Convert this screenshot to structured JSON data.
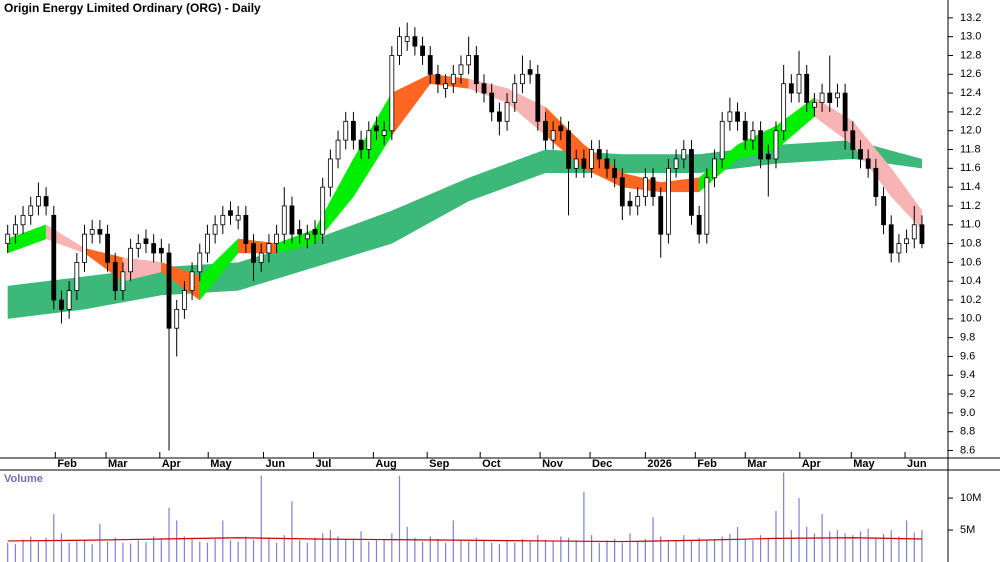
{
  "chart_data": [
    {
      "type": "candlestick",
      "title": "Origin Energy Limited Ordinary (ORG) - Daily",
      "xlim": [
        -1,
        122
      ],
      "xticks": [
        {
          "value": 6.2,
          "label": "Feb"
        },
        {
          "value": 12.8,
          "label": "Mar"
        },
        {
          "value": 19.8,
          "label": "Apr"
        },
        {
          "value": 26.1,
          "label": "May"
        },
        {
          "value": 33.3,
          "label": "Jun"
        },
        {
          "value": 39.8,
          "label": "Jul"
        },
        {
          "value": 47.6,
          "label": "Aug"
        },
        {
          "value": 54.6,
          "label": "Sep"
        },
        {
          "value": 61.5,
          "label": "Oct"
        },
        {
          "value": 69.3,
          "label": "Nov"
        },
        {
          "value": 75.8,
          "label": "Dec"
        },
        {
          "value": 83.0,
          "label": "2026"
        },
        {
          "value": 89.5,
          "label": "Feb"
        },
        {
          "value": 96.0,
          "label": "Mar"
        },
        {
          "value": 103.1,
          "label": "Apr"
        },
        {
          "value": 109.8,
          "label": "May"
        },
        {
          "value": 116.8,
          "label": "Jun"
        }
      ],
      "ylim": [
        8.52,
        13.39
      ],
      "yticks": [
        8.6,
        8.8,
        {
          "value": 9.0,
          "label": "9.0"
        },
        9.2,
        9.4,
        9.6,
        9.8,
        {
          "value": 10.0,
          "label": "10.0"
        },
        10.2,
        10.4,
        10.6,
        10.8,
        {
          "value": 11.0,
          "label": "11.0"
        },
        11.2,
        11.4,
        11.6,
        11.8,
        {
          "value": 12.0,
          "label": "12.0"
        },
        12.2,
        12.4,
        12.6,
        12.8,
        {
          "value": 13.0,
          "label": "13.0"
        },
        13.2
      ],
      "up_color": "#ffffff",
      "down_color": "#000000",
      "open": [
        10.8,
        10.9,
        11.0,
        11.1,
        11.2,
        11.3,
        11.1,
        10.2,
        10.1,
        10.3,
        10.6,
        10.9,
        10.95,
        10.9,
        10.6,
        10.3,
        10.5,
        10.75,
        10.85,
        10.8,
        10.75,
        10.7,
        9.9,
        10.1,
        10.3,
        10.5,
        10.7,
        10.9,
        11.0,
        11.15,
        11.05,
        11.1,
        10.8,
        10.6,
        10.7,
        10.8,
        10.9,
        11.2,
        10.95,
        10.85,
        10.95,
        10.9,
        11.4,
        11.7,
        11.9,
        12.1,
        11.9,
        11.8,
        12.05,
        11.95,
        12.0,
        12.8,
        12.95,
        13.0,
        12.9,
        12.8,
        12.6,
        12.45,
        12.5,
        12.6,
        12.7,
        12.8,
        12.5,
        12.4,
        12.2,
        12.1,
        12.3,
        12.5,
        12.65,
        12.6,
        12.1,
        11.9,
        12.05,
        12.0,
        11.6,
        11.7,
        11.6,
        11.8,
        11.7,
        11.6,
        11.5,
        11.25,
        11.2,
        11.3,
        11.5,
        11.3,
        10.9,
        11.6,
        11.7,
        11.8,
        11.1,
        10.9,
        11.5,
        11.7,
        12.1,
        12.2,
        12.1,
        11.9,
        12.0,
        11.75,
        11.7,
        12.0,
        12.5,
        12.4,
        12.6,
        12.25,
        12.3,
        12.4,
        12.35,
        12.4,
        12.0,
        11.8,
        11.7,
        11.6,
        11.3,
        11.0,
        10.7,
        10.8,
        10.85,
        11.0
      ],
      "high": [
        11.0,
        11.1,
        11.2,
        11.3,
        11.45,
        11.4,
        11.2,
        10.3,
        10.4,
        10.7,
        11.0,
        11.05,
        11.05,
        11.0,
        10.7,
        10.6,
        10.85,
        10.9,
        10.95,
        10.9,
        10.85,
        10.8,
        10.2,
        10.4,
        10.6,
        10.8,
        11.0,
        11.1,
        11.2,
        11.25,
        11.2,
        11.2,
        10.9,
        10.8,
        10.9,
        11.0,
        11.4,
        11.3,
        11.05,
        11.0,
        11.05,
        11.5,
        11.8,
        12.0,
        12.2,
        12.2,
        12.0,
        12.1,
        12.15,
        12.1,
        12.9,
        13.1,
        13.15,
        13.1,
        13.0,
        12.9,
        12.7,
        12.6,
        12.7,
        12.8,
        13.0,
        12.9,
        12.6,
        12.5,
        12.3,
        12.4,
        12.6,
        12.8,
        12.75,
        12.7,
        12.2,
        12.1,
        12.15,
        12.1,
        11.8,
        11.8,
        11.9,
        11.9,
        11.8,
        11.7,
        11.6,
        11.35,
        11.4,
        11.6,
        11.6,
        11.4,
        11.7,
        11.8,
        11.9,
        11.9,
        11.2,
        11.6,
        11.8,
        12.2,
        12.35,
        12.3,
        12.2,
        12.1,
        12.1,
        11.85,
        12.1,
        12.7,
        12.6,
        12.85,
        12.7,
        12.4,
        12.5,
        12.8,
        12.5,
        12.5,
        12.1,
        11.9,
        11.8,
        11.7,
        11.4,
        11.1,
        10.9,
        10.95,
        11.2,
        11.1
      ],
      "low": [
        10.7,
        10.8,
        10.9,
        11.0,
        11.1,
        11.1,
        10.1,
        9.95,
        10.0,
        10.2,
        10.5,
        10.8,
        10.8,
        10.5,
        10.2,
        10.2,
        10.4,
        10.65,
        10.7,
        10.6,
        10.6,
        8.6,
        9.6,
        10.0,
        10.2,
        10.4,
        10.6,
        10.8,
        10.9,
        11.0,
        10.95,
        10.7,
        10.4,
        10.5,
        10.6,
        10.7,
        10.8,
        10.8,
        10.8,
        10.75,
        10.8,
        10.8,
        11.3,
        11.6,
        11.8,
        11.8,
        11.7,
        11.7,
        11.9,
        11.85,
        11.9,
        12.7,
        12.85,
        12.8,
        12.7,
        12.5,
        12.4,
        12.35,
        12.4,
        12.5,
        12.6,
        12.4,
        12.3,
        12.1,
        11.95,
        12.0,
        12.2,
        12.4,
        12.5,
        12.0,
        11.8,
        11.8,
        11.9,
        11.1,
        11.5,
        11.5,
        11.5,
        11.6,
        11.5,
        11.4,
        11.05,
        11.1,
        11.1,
        11.2,
        11.2,
        10.65,
        10.8,
        11.5,
        11.6,
        11.0,
        10.8,
        10.8,
        11.4,
        11.6,
        12.0,
        12.0,
        11.8,
        11.8,
        11.6,
        11.3,
        11.6,
        11.9,
        12.3,
        12.3,
        12.2,
        12.15,
        12.2,
        12.2,
        12.25,
        11.8,
        11.7,
        11.6,
        11.5,
        11.2,
        10.9,
        10.6,
        10.6,
        10.7,
        10.75,
        10.75
      ],
      "close": [
        10.9,
        11.0,
        11.1,
        11.2,
        11.3,
        11.2,
        10.2,
        10.1,
        10.3,
        10.6,
        10.9,
        10.95,
        10.9,
        10.6,
        10.3,
        10.5,
        10.75,
        10.8,
        10.8,
        10.7,
        10.7,
        9.9,
        10.1,
        10.3,
        10.5,
        10.7,
        10.9,
        11.0,
        11.1,
        11.1,
        11.1,
        10.8,
        10.6,
        10.7,
        10.8,
        10.9,
        11.2,
        10.9,
        10.9,
        10.9,
        10.9,
        11.4,
        11.7,
        11.9,
        12.1,
        11.9,
        11.8,
        12.0,
        12.0,
        12.0,
        12.8,
        13.0,
        13.0,
        12.9,
        12.8,
        12.6,
        12.5,
        12.5,
        12.6,
        12.7,
        12.8,
        12.5,
        12.4,
        12.2,
        12.1,
        12.3,
        12.5,
        12.6,
        12.6,
        12.1,
        11.9,
        12.0,
        12.0,
        11.6,
        11.7,
        11.6,
        11.8,
        11.7,
        11.6,
        11.5,
        11.2,
        11.2,
        11.3,
        11.5,
        11.3,
        10.9,
        11.6,
        11.7,
        11.8,
        11.1,
        10.9,
        11.5,
        11.7,
        12.1,
        12.2,
        12.1,
        11.9,
        12.0,
        11.7,
        11.7,
        12.0,
        12.5,
        12.4,
        12.6,
        12.3,
        12.3,
        12.4,
        12.3,
        12.4,
        12.0,
        11.8,
        11.7,
        11.6,
        11.3,
        11.0,
        10.7,
        10.8,
        10.85,
        11.0,
        10.8
      ],
      "long_band": {
        "color": "#3cb878",
        "x": [
          0,
          10,
          20,
          30,
          40,
          50,
          60,
          70,
          80,
          90,
          100,
          110,
          119
        ],
        "upper": [
          10.35,
          10.45,
          10.55,
          10.6,
          10.85,
          11.15,
          11.5,
          11.8,
          11.75,
          11.75,
          11.85,
          11.9,
          11.7
        ],
        "lower": [
          10.0,
          10.1,
          10.25,
          10.3,
          10.55,
          10.8,
          11.25,
          11.55,
          11.55,
          11.55,
          11.65,
          11.7,
          11.6
        ]
      },
      "short_band": {
        "x": [
          0,
          5,
          10,
          15,
          20,
          25,
          30,
          35,
          40,
          45,
          50,
          55,
          60,
          65,
          70,
          75,
          80,
          85,
          90,
          95,
          100,
          105,
          110,
          115,
          119
        ],
        "upper": [
          10.85,
          11.0,
          10.75,
          10.65,
          10.6,
          10.45,
          10.85,
          10.8,
          10.95,
          11.7,
          12.4,
          12.6,
          12.55,
          12.45,
          12.25,
          11.85,
          11.55,
          11.45,
          11.5,
          11.85,
          12.05,
          12.35,
          12.1,
          11.6,
          11.15
        ],
        "lower": [
          10.7,
          10.85,
          10.7,
          10.4,
          10.5,
          10.2,
          10.7,
          10.7,
          10.8,
          11.3,
          11.95,
          12.5,
          12.45,
          12.3,
          11.95,
          11.6,
          11.4,
          11.35,
          11.35,
          11.7,
          11.8,
          12.15,
          11.85,
          11.3,
          10.95
        ],
        "colors": [
          "#00ee00",
          "#f8b4b4",
          "#ff6622",
          "#f8b4b4",
          "#ff6622",
          "#00ee00",
          "#ff6622",
          "#00ee00",
          "#00ee00",
          "#00ee00",
          "#ff6622",
          "#ff6622",
          "#f8b4b4",
          "#f8b4b4",
          "#ff6622",
          "#ff6622",
          "#ff6622",
          "#ff6622",
          "#00ee00",
          "#00ee00",
          "#00ee00",
          "#f8b4b4",
          "#f8b4b4",
          "#f8b4b4"
        ]
      }
    },
    {
      "type": "bar",
      "title": "Volume",
      "xlim": [
        -1,
        122
      ],
      "ylim": [
        0,
        14.4
      ],
      "yticks": [
        {
          "value": 5,
          "label": "5M"
        },
        {
          "value": 10,
          "label": "10M"
        }
      ],
      "color": "#7f7fd6",
      "values": [
        3.0,
        2.8,
        3.5,
        4.0,
        3.2,
        3.8,
        7.5,
        4.5,
        3.0,
        3.2,
        3.5,
        2.8,
        6.0,
        3.2,
        3.8,
        3.0,
        2.9,
        3.4,
        3.1,
        4.0,
        3.5,
        8.5,
        6.5,
        4.0,
        3.8,
        3.2,
        3.0,
        3.6,
        6.5,
        3.4,
        3.2,
        4.0,
        3.5,
        13.5,
        3.8,
        3.0,
        4.2,
        9.5,
        3.4,
        3.0,
        3.8,
        4.5,
        5.0,
        4.0,
        3.6,
        3.5,
        4.8,
        3.2,
        3.4,
        3.6,
        4.5,
        13.5,
        5.5,
        3.8,
        3.2,
        4.0,
        3.6,
        3.0,
        6.5,
        3.4,
        3.2,
        3.8,
        3.5,
        3.0,
        2.8,
        3.4,
        3.0,
        3.6,
        3.2,
        4.2,
        3.5,
        3.2,
        4.0,
        3.8,
        3.4,
        11.0,
        4.2,
        3.0,
        3.4,
        3.6,
        3.0,
        4.5,
        3.2,
        3.6,
        7.0,
        4.0,
        3.4,
        3.2,
        4.2,
        3.5,
        3.8,
        3.4,
        3.6,
        4.0,
        4.4,
        5.5,
        3.6,
        3.4,
        4.2,
        3.8,
        8.0,
        14.0,
        5.0,
        10.0,
        5.5,
        4.5,
        7.5,
        4.8,
        5.0,
        4.5,
        4.2,
        4.8,
        5.2,
        3.8,
        4.4,
        5.0,
        4.0,
        6.5,
        4.6,
        5.0
      ],
      "average": {
        "color": "#cc0000",
        "x": [
          0,
          10,
          20,
          30,
          40,
          50,
          60,
          70,
          80,
          90,
          100,
          110,
          119
        ],
        "values": [
          3.3,
          3.4,
          3.6,
          3.8,
          3.6,
          3.5,
          3.4,
          3.3,
          3.2,
          3.4,
          3.7,
          3.8,
          3.6
        ]
      }
    }
  ]
}
